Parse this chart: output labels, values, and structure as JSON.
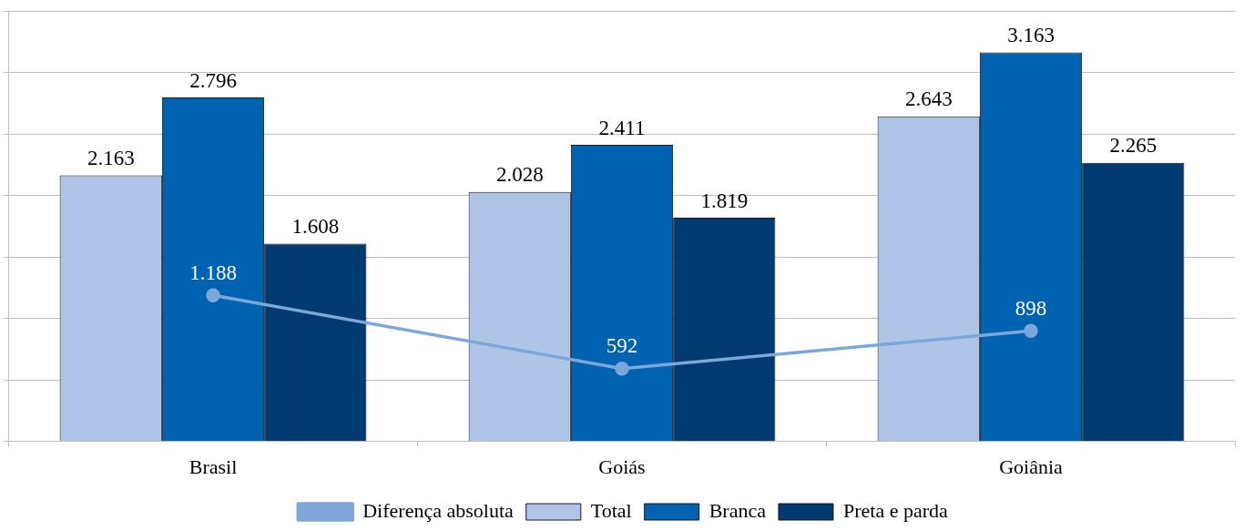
{
  "chart_data": {
    "type": "bar",
    "categories": [
      "Brasil",
      "Goiás",
      "Goiânia"
    ],
    "series": [
      {
        "name": "Total",
        "color": "#aec5e7",
        "values": [
          2163,
          2028,
          2643
        ],
        "value_labels": [
          "2.163",
          "2.028",
          "2.643"
        ]
      },
      {
        "name": "Branca",
        "color": "#0063b1",
        "values": [
          2796,
          2411,
          3163
        ],
        "value_labels": [
          "2.796",
          "2.411",
          "3.163"
        ]
      },
      {
        "name": "Preta e parda",
        "color": "#003a70",
        "values": [
          1608,
          1819,
          2265
        ],
        "value_labels": [
          "1.608",
          "1.819",
          "2.265"
        ]
      },
      {
        "name": "Diferença absoluta",
        "type": "line",
        "color": "#7da7d9",
        "marker": "circle",
        "values": [
          1188,
          592,
          898
        ],
        "value_labels": [
          "1.188",
          "592",
          "898"
        ]
      }
    ],
    "ylim": [
      0,
      3500
    ],
    "yticks": [
      {
        "value": 0,
        "label": null
      },
      {
        "value": 500,
        "label": null
      },
      {
        "value": 1000,
        "label": null
      },
      {
        "value": 1500,
        "label": null
      },
      {
        "value": 2000,
        "label": null
      },
      {
        "value": 2500,
        "label": null
      },
      {
        "value": 3000,
        "label": null
      },
      {
        "value": 3500,
        "label": null
      }
    ],
    "grid": "y",
    "legend": "bottom",
    "tick_labels": "x"
  }
}
